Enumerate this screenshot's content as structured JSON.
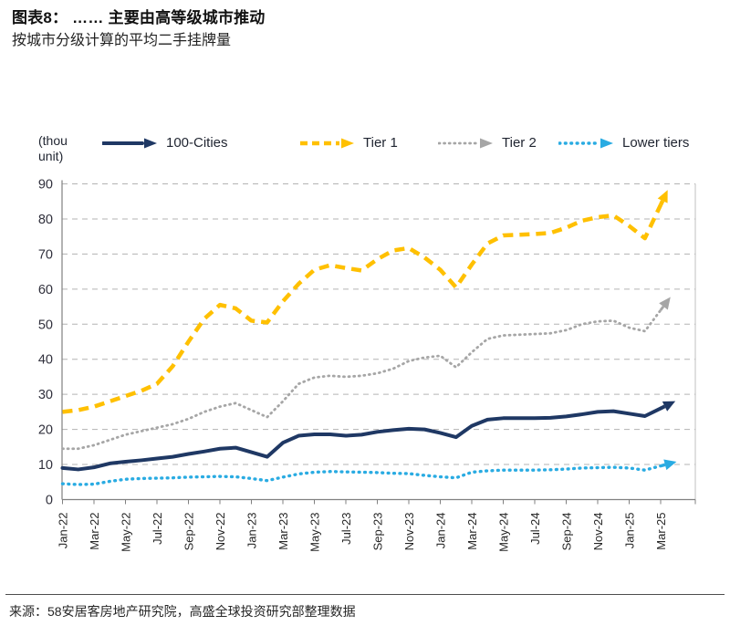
{
  "header": {
    "title": "图表8： …… 主要由高等级城市推动",
    "subtitle": "按城市分级计算的平均二手挂牌量"
  },
  "footer": {
    "source": "来源：58安居客房地产研究院，高盛全球投资研究部整理数据"
  },
  "chart_data": {
    "type": "line",
    "unit_label": "(thou unit)",
    "ylim": [
      0,
      90
    ],
    "ytick_step": 10,
    "grid": "horizontal-dashed",
    "legend_position": "top",
    "x": [
      "Jan-22",
      "Feb-22",
      "Mar-22",
      "Apr-22",
      "May-22",
      "Jun-22",
      "Jul-22",
      "Aug-22",
      "Sep-22",
      "Oct-22",
      "Nov-22",
      "Dec-22",
      "Jan-23",
      "Feb-23",
      "Mar-23",
      "Apr-23",
      "May-23",
      "Jun-23",
      "Jul-23",
      "Aug-23",
      "Sep-23",
      "Oct-23",
      "Nov-23",
      "Dec-23",
      "Jan-24",
      "Feb-24",
      "Mar-24",
      "Apr-24",
      "May-24",
      "Jun-24",
      "Jul-24",
      "Aug-24",
      "Sep-24",
      "Oct-24",
      "Nov-24",
      "Dec-24",
      "Jan-25",
      "Feb-25",
      "Mar-25"
    ],
    "x_tick_labels": [
      "Jan-22",
      "Mar-22",
      "May-22",
      "Jul-22",
      "Sep-22",
      "Nov-22",
      "Jan-23",
      "Mar-23",
      "May-23",
      "Jul-23",
      "Sep-23",
      "Nov-23",
      "Jan-24",
      "Mar-24",
      "May-24",
      "Jul-24",
      "Sep-24",
      "Nov-24",
      "Jan-25",
      "Mar-25"
    ],
    "series": [
      {
        "name": "100-Cities",
        "color": "#1F3864",
        "style": "solid",
        "values": [
          9,
          8.6,
          9.2,
          10.3,
          10.8,
          11.2,
          11.7,
          12.2,
          13,
          13.7,
          14.5,
          14.8,
          13.5,
          12.2,
          16.2,
          18.2,
          18.6,
          18.6,
          18.2,
          18.5,
          19.3,
          19.8,
          20.2,
          20,
          19,
          17.8,
          21,
          22.8,
          23.2,
          23.2,
          23.2,
          23.3,
          23.7,
          24.3,
          25,
          25.2,
          24.5,
          23.8,
          26
        ]
      },
      {
        "name": "Tier 1",
        "color": "#FFC000",
        "style": "dashed",
        "values": [
          25,
          25.5,
          26.5,
          28,
          29.5,
          31,
          33,
          38,
          45,
          51.5,
          55.5,
          54.5,
          51,
          50.5,
          56.5,
          61.5,
          65.5,
          66.8,
          66,
          65.3,
          68.5,
          71,
          71.7,
          69,
          65.5,
          60.5,
          67,
          73,
          75.3,
          75.5,
          75.7,
          76,
          77.5,
          79.5,
          80.5,
          81,
          78,
          74.5,
          84
        ]
      },
      {
        "name": "Tier 2",
        "color": "#A6A6A6",
        "style": "dotted",
        "values": [
          14.5,
          14.5,
          15.5,
          17,
          18.5,
          19.5,
          20.5,
          21.5,
          23,
          25,
          26.5,
          27.5,
          25.5,
          23.5,
          28,
          33,
          34.8,
          35.3,
          35,
          35.3,
          36,
          37.3,
          39.5,
          40.5,
          41,
          37.7,
          42,
          45.8,
          46.8,
          47,
          47.2,
          47.4,
          48.3,
          50,
          50.8,
          51,
          49,
          48,
          54
        ]
      },
      {
        "name": "Lower tiers",
        "color": "#29ABE2",
        "style": "dotted",
        "values": [
          4.5,
          4.3,
          4.4,
          5.2,
          5.8,
          6,
          6.1,
          6.2,
          6.4,
          6.5,
          6.6,
          6.5,
          6,
          5.4,
          6.4,
          7.3,
          7.8,
          8,
          7.9,
          7.8,
          7.7,
          7.5,
          7.4,
          6.9,
          6.5,
          6.2,
          7.8,
          8.2,
          8.4,
          8.4,
          8.4,
          8.5,
          8.7,
          9,
          9.1,
          9.2,
          9,
          8.4,
          9.6
        ]
      }
    ]
  }
}
